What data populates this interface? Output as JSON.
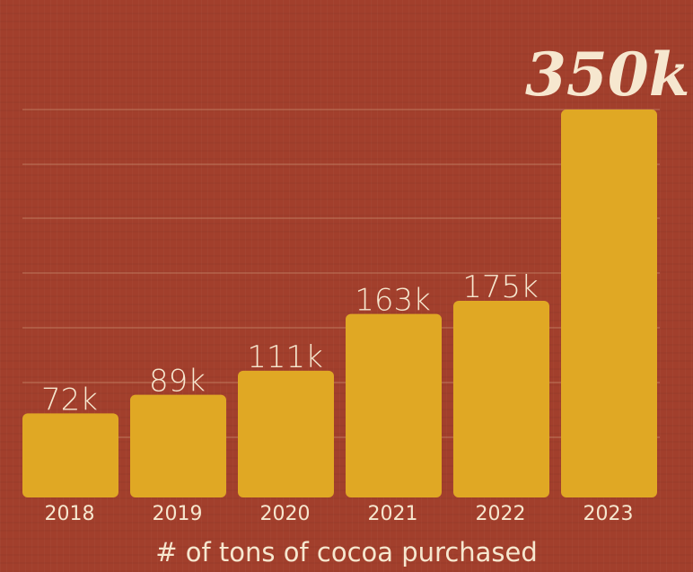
{
  "chart_data": {
    "type": "bar",
    "categories": [
      "2018",
      "2019",
      "2020",
      "2021",
      "2022",
      "2023"
    ],
    "values": [
      72,
      89,
      111,
      163,
      175,
      350
    ],
    "value_labels": [
      "72k",
      "89k",
      "111k",
      "163k",
      "175k",
      "350k"
    ],
    "xlabel": "# of tons of cocoa purchased",
    "ylabel": "",
    "ylim": [
      0,
      350
    ],
    "grid": true,
    "legend": "none",
    "colors": {
      "background": "#a23f2c",
      "bar": "#e0a824",
      "text": "#f6e7cf",
      "grid": "#c98a6c"
    }
  }
}
